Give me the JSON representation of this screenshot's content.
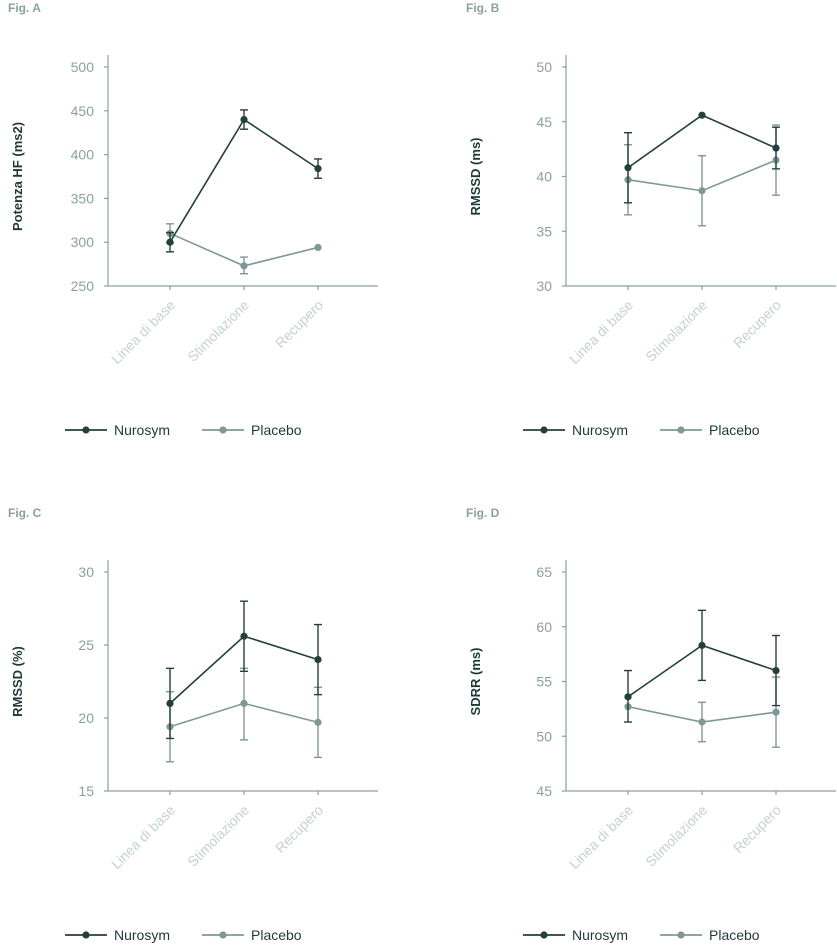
{
  "colors": {
    "axis": "#8aa29c",
    "fig_label": "#8aa29c",
    "tick_text": "#8aa29c",
    "cat_text": "#c3d3ce",
    "ylabel_text": "#1e3a36",
    "series": [
      "#24403c",
      "#7e9994"
    ]
  },
  "legend": [
    {
      "name": "Nurosym",
      "color": "#24403c"
    },
    {
      "name": "Placebo",
      "color": "#7e9994"
    }
  ],
  "chart_data": [
    {
      "type": "line",
      "fig_label": "Fig. A",
      "ylabel": "Potenza HF (ms2)",
      "categories": [
        "Linea di base",
        "Stimolazione",
        "Recupero"
      ],
      "ylim": [
        250,
        500
      ],
      "yticks": [
        250,
        300,
        350,
        400,
        450,
        500
      ],
      "grid": false,
      "legend_position": "bottom",
      "series": [
        {
          "name": "Nurosym",
          "values": [
            300,
            440,
            384
          ],
          "err_low": [
            289,
            429,
            373
          ],
          "err_high": [
            311,
            451,
            395
          ]
        },
        {
          "name": "Placebo",
          "values": [
            310,
            273,
            294
          ],
          "err_low": [
            299,
            264,
            294
          ],
          "err_high": [
            321,
            283,
            294
          ]
        }
      ]
    },
    {
      "type": "line",
      "fig_label": "Fig. B",
      "ylabel": "RMSSD (ms)",
      "categories": [
        "Linea di base",
        "Stimolazione",
        "Recupero"
      ],
      "ylim": [
        30,
        50
      ],
      "yticks": [
        30,
        35,
        40,
        45,
        50
      ],
      "grid": false,
      "legend_position": "bottom",
      "series": [
        {
          "name": "Nurosym",
          "values": [
            40.8,
            45.6,
            42.6
          ],
          "err_low": [
            37.6,
            45.6,
            40.7
          ],
          "err_high": [
            44.0,
            45.6,
            44.5
          ]
        },
        {
          "name": "Placebo",
          "values": [
            39.7,
            38.7,
            41.5
          ],
          "err_low": [
            36.5,
            35.5,
            38.3
          ],
          "err_high": [
            42.9,
            41.9,
            44.7
          ]
        }
      ]
    },
    {
      "type": "line",
      "fig_label": "Fig. C",
      "ylabel": "RMSSD (%)",
      "categories": [
        "Linea di base",
        "Stimolazione",
        "Recupero"
      ],
      "ylim": [
        15,
        30
      ],
      "yticks": [
        15,
        20,
        25,
        30
      ],
      "grid": false,
      "legend_position": "bottom",
      "series": [
        {
          "name": "Nurosym",
          "values": [
            21.0,
            25.6,
            24.0
          ],
          "err_low": [
            18.6,
            23.2,
            21.6
          ],
          "err_high": [
            23.4,
            28.0,
            26.4
          ]
        },
        {
          "name": "Placebo",
          "values": [
            19.4,
            21.0,
            19.7
          ],
          "err_low": [
            17.0,
            18.5,
            17.3
          ],
          "err_high": [
            21.8,
            23.4,
            22.1
          ]
        }
      ]
    },
    {
      "type": "line",
      "fig_label": "Fig. D",
      "ylabel": "SDRR (ms)",
      "categories": [
        "Linea di base",
        "Stimolazione",
        "Recupero"
      ],
      "ylim": [
        45,
        65
      ],
      "yticks": [
        45,
        50,
        55,
        60,
        65
      ],
      "grid": false,
      "legend_position": "bottom",
      "series": [
        {
          "name": "Nurosym",
          "values": [
            53.6,
            58.3,
            56.0
          ],
          "err_low": [
            51.3,
            55.1,
            52.8
          ],
          "err_high": [
            56.0,
            61.5,
            59.2
          ]
        },
        {
          "name": "Placebo",
          "values": [
            52.7,
            51.3,
            52.2
          ],
          "err_low": [
            52.7,
            49.5,
            49.0
          ],
          "err_high": [
            52.7,
            53.1,
            55.4
          ]
        }
      ]
    }
  ]
}
